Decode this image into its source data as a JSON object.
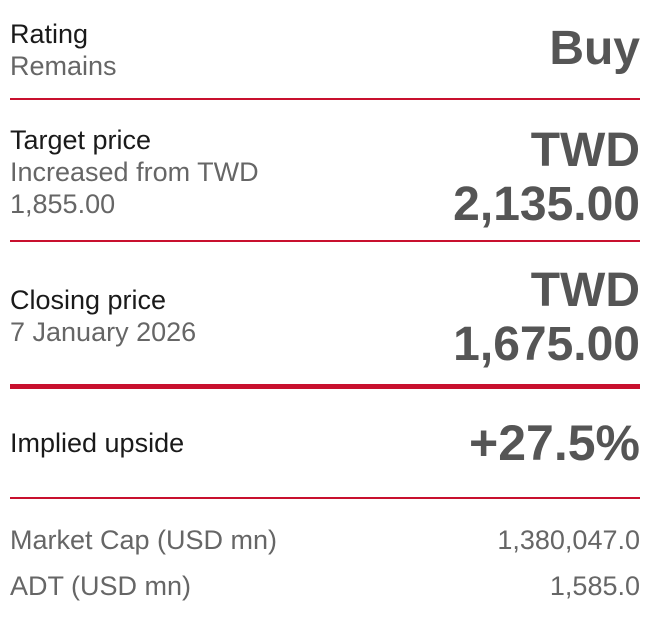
{
  "rating": {
    "label": "Rating",
    "sub": "Remains",
    "value": "Buy"
  },
  "target_price": {
    "label": "Target price",
    "sub_line1": "Increased from TWD",
    "sub_line2": "1,855.00",
    "currency": "TWD",
    "value": "2,135.00"
  },
  "closing_price": {
    "label": "Closing price",
    "sub": "7 January 2026",
    "currency": "TWD",
    "value": "1,675.00"
  },
  "implied_upside": {
    "label": "Implied upside",
    "value": "+27.5%"
  },
  "metrics": [
    {
      "label": "Market Cap (USD mn)",
      "value": "1,380,047.0"
    },
    {
      "label": "ADT (USD mn)",
      "value": "1,585.0"
    }
  ],
  "colors": {
    "accent": "#c8102e",
    "value_text": "#555555",
    "muted_text": "#666666"
  }
}
